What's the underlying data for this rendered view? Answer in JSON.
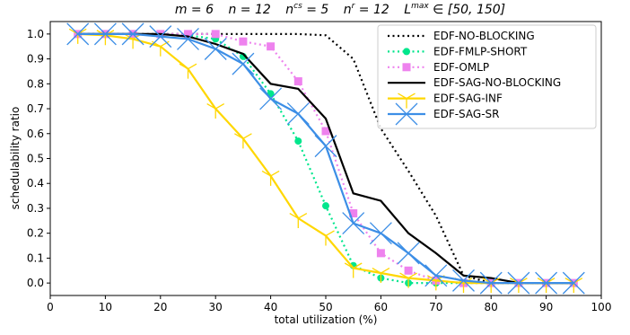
{
  "chart_data": {
    "type": "line",
    "title": "m = 6   n = 12   n^cs = 5   n^r = 12   L^max ∈ [50, 150]",
    "title_parts": {
      "m": "m = 6",
      "n": "n = 12",
      "ncs_base": "n",
      "ncs_sup": "cs",
      "ncs_val": " = 5",
      "nr_base": "n",
      "nr_sup": "r",
      "nr_val": " = 12",
      "lmax_base": "L",
      "lmax_sup": "max",
      "lmax_val": " ∈ [50, 150]"
    },
    "xlabel": "total utilization (%)",
    "ylabel": "schedulability ratio",
    "xlim": [
      0,
      100
    ],
    "ylim": [
      -0.05,
      1.05
    ],
    "xticks": [
      0,
      10,
      20,
      30,
      40,
      50,
      60,
      70,
      80,
      90,
      100
    ],
    "yticks": [
      0.0,
      0.1,
      0.2,
      0.3,
      0.4,
      0.5,
      0.6,
      0.7,
      0.8,
      0.9,
      1.0
    ],
    "xtick_labels": [
      "0",
      "10",
      "20",
      "30",
      "40",
      "50",
      "60",
      "70",
      "80",
      "90",
      "100"
    ],
    "ytick_labels": [
      "0.0",
      "0.1",
      "0.2",
      "0.3",
      "0.4",
      "0.5",
      "0.6",
      "0.7",
      "0.8",
      "0.9",
      "1.0"
    ],
    "legend_position": "top-right",
    "grid": false,
    "series": [
      {
        "name": "EDF-NO-BLOCKING",
        "color": "#000000",
        "style": "dotted",
        "marker": "none",
        "x": [
          5,
          10,
          15,
          20,
          25,
          30,
          35,
          40,
          45,
          50,
          55,
          60,
          65,
          70,
          75,
          80,
          85,
          90,
          95
        ],
        "y": [
          1.0,
          1.0,
          1.0,
          1.0,
          1.0,
          1.0,
          1.0,
          1.0,
          1.0,
          0.995,
          0.9,
          0.62,
          0.45,
          0.27,
          0.03,
          0.0,
          0.0,
          0.0,
          0.0
        ]
      },
      {
        "name": "EDF-FMLP-SHORT",
        "color": "#00e68c",
        "style": "dotted",
        "marker": "circle",
        "x": [
          5,
          10,
          15,
          20,
          25,
          30,
          35,
          40,
          45,
          50,
          55,
          60,
          65,
          70,
          75,
          80,
          85,
          90,
          95
        ],
        "y": [
          1.0,
          1.0,
          1.0,
          1.0,
          0.995,
          0.98,
          0.91,
          0.76,
          0.57,
          0.31,
          0.07,
          0.02,
          0.0,
          0.0,
          0.0,
          0.0,
          0.0,
          0.0,
          0.0
        ]
      },
      {
        "name": "EDF-OMLP",
        "color": "#ee82ee",
        "style": "dotted",
        "marker": "square",
        "x": [
          5,
          10,
          15,
          20,
          25,
          30,
          35,
          40,
          45,
          50,
          55,
          60,
          65,
          70,
          75,
          80,
          85,
          90,
          95
        ],
        "y": [
          1.0,
          1.0,
          1.0,
          1.0,
          1.0,
          1.0,
          0.97,
          0.95,
          0.81,
          0.61,
          0.28,
          0.12,
          0.05,
          0.01,
          0.0,
          0.0,
          0.0,
          0.0,
          0.0
        ]
      },
      {
        "name": "EDF-SAG-NO-BLOCKING",
        "color": "#000000",
        "style": "solid",
        "marker": "none",
        "x": [
          5,
          10,
          15,
          20,
          25,
          30,
          35,
          40,
          45,
          50,
          55,
          60,
          65,
          70,
          75,
          80,
          85,
          90,
          95
        ],
        "y": [
          1.0,
          1.0,
          1.0,
          1.0,
          0.99,
          0.96,
          0.92,
          0.8,
          0.78,
          0.66,
          0.36,
          0.33,
          0.2,
          0.12,
          0.03,
          0.02,
          0.0,
          0.0,
          0.0
        ]
      },
      {
        "name": "EDF-SAG-INF",
        "color": "#ffd700",
        "style": "solid",
        "marker": "tri_down",
        "x": [
          5,
          10,
          15,
          20,
          25,
          30,
          35,
          40,
          45,
          50,
          55,
          60,
          65,
          70,
          75,
          80,
          85,
          90,
          95
        ],
        "y": [
          1.0,
          0.995,
          0.98,
          0.95,
          0.86,
          0.7,
          0.58,
          0.43,
          0.26,
          0.19,
          0.06,
          0.04,
          0.02,
          0.01,
          0.0,
          0.0,
          0.0,
          0.0,
          0.0
        ]
      },
      {
        "name": "EDF-SAG-SR",
        "color": "#3c8ee6",
        "style": "solid",
        "marker": "x",
        "x": [
          5,
          10,
          15,
          20,
          25,
          30,
          35,
          40,
          45,
          50,
          55,
          60,
          65,
          70,
          75,
          80,
          85,
          90,
          95
        ],
        "y": [
          1.0,
          1.0,
          1.0,
          0.99,
          0.98,
          0.94,
          0.88,
          0.74,
          0.68,
          0.55,
          0.24,
          0.2,
          0.12,
          0.03,
          0.01,
          0.0,
          0.0,
          0.0,
          0.0
        ]
      }
    ]
  }
}
